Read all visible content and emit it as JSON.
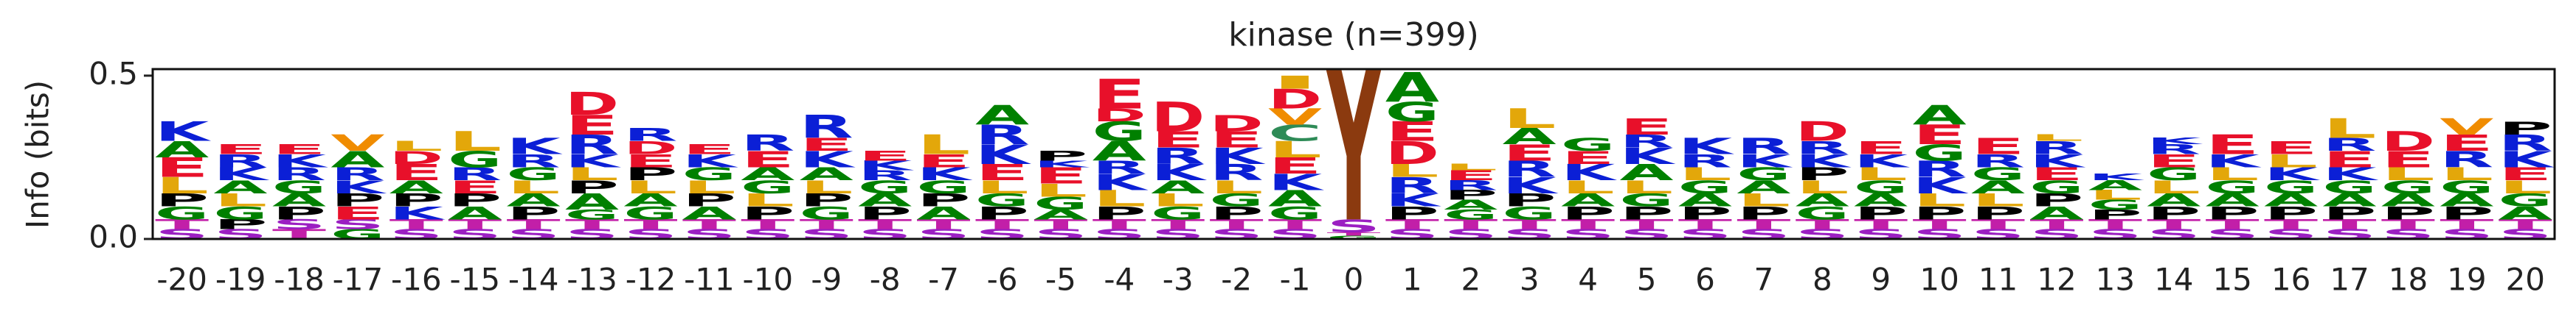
{
  "chart_data": {
    "type": "logo",
    "title": "kinase (n=399)",
    "ylabel": "Info (bits)",
    "categories": [
      "-20",
      "-19",
      "-18",
      "-17",
      "-16",
      "-15",
      "-14",
      "-13",
      "-12",
      "-11",
      "-10",
      "-9",
      "-8",
      "-7",
      "-6",
      "-5",
      "-4",
      "-3",
      "-2",
      "-1",
      "0",
      "1",
      "2",
      "3",
      "4",
      "5",
      "6",
      "7",
      "8",
      "9",
      "10",
      "11",
      "12",
      "13",
      "14",
      "15",
      "16",
      "17",
      "18",
      "19",
      "20"
    ],
    "ylim": [
      0,
      0.52
    ],
    "yticks": [
      {
        "value": 0,
        "label": "0.0"
      },
      {
        "value": 0.5,
        "label": "0.5"
      }
    ],
    "letter_colors": {
      "A": "#008000",
      "G": "#008000",
      "C": "#2e8b57",
      "D": "#e8102a",
      "E": "#e8102a",
      "K": "#0b1fd6",
      "R": "#0b1fd6",
      "P": "#000000",
      "L": "#e3a70a",
      "I": "#e3a70a",
      "V": "#f08c00",
      "Y": "#8b3a0f",
      "S": "#9b1fc2",
      "T": "#c21fa8"
    },
    "stacks": [
      {
        "letters": [
          "S",
          "T",
          "G",
          "P",
          "L",
          "E",
          "A",
          "K"
        ],
        "values": [
          0.03,
          0.03,
          0.04,
          0.04,
          0.05,
          0.06,
          0.05,
          0.06
        ]
      },
      {
        "letters": [
          "S",
          "P",
          "G",
          "L",
          "A",
          "K",
          "R",
          "E"
        ],
        "values": [
          0.03,
          0.03,
          0.04,
          0.04,
          0.04,
          0.04,
          0.04,
          0.03
        ]
      },
      {
        "letters": [
          "T",
          "S",
          "P",
          "A",
          "G",
          "R",
          "K",
          "E"
        ],
        "values": [
          0.03,
          0.03,
          0.04,
          0.04,
          0.04,
          0.04,
          0.04,
          0.03
        ]
      },
      {
        "letters": [
          "G",
          "S",
          "E",
          "P",
          "K",
          "R",
          "A",
          "V"
        ],
        "values": [
          0.03,
          0.03,
          0.04,
          0.04,
          0.04,
          0.04,
          0.05,
          0.05
        ]
      },
      {
        "letters": [
          "S",
          "T",
          "K",
          "P",
          "A",
          "E",
          "D",
          "L"
        ],
        "values": [
          0.03,
          0.03,
          0.04,
          0.04,
          0.04,
          0.05,
          0.04,
          0.03
        ]
      },
      {
        "letters": [
          "S",
          "T",
          "A",
          "P",
          "E",
          "R",
          "G",
          "L"
        ],
        "values": [
          0.03,
          0.03,
          0.04,
          0.04,
          0.04,
          0.04,
          0.05,
          0.06
        ]
      },
      {
        "letters": [
          "S",
          "T",
          "P",
          "A",
          "L",
          "G",
          "R",
          "K"
        ],
        "values": [
          0.03,
          0.03,
          0.04,
          0.04,
          0.04,
          0.04,
          0.04,
          0.05
        ]
      },
      {
        "letters": [
          "S",
          "T",
          "G",
          "A",
          "P",
          "L",
          "K",
          "R",
          "E",
          "D"
        ],
        "values": [
          0.03,
          0.03,
          0.03,
          0.05,
          0.04,
          0.04,
          0.04,
          0.06,
          0.06,
          0.07
        ]
      },
      {
        "letters": [
          "S",
          "T",
          "G",
          "A",
          "L",
          "P",
          "E",
          "D",
          "R"
        ],
        "values": [
          0.03,
          0.03,
          0.04,
          0.04,
          0.04,
          0.04,
          0.04,
          0.04,
          0.04
        ]
      },
      {
        "letters": [
          "S",
          "T",
          "A",
          "P",
          "L",
          "G",
          "K",
          "E"
        ],
        "values": [
          0.03,
          0.03,
          0.04,
          0.04,
          0.04,
          0.04,
          0.04,
          0.03
        ]
      },
      {
        "letters": [
          "S",
          "T",
          "P",
          "L",
          "G",
          "A",
          "E",
          "R"
        ],
        "values": [
          0.03,
          0.03,
          0.04,
          0.04,
          0.04,
          0.04,
          0.05,
          0.05
        ]
      },
      {
        "letters": [
          "S",
          "T",
          "G",
          "P",
          "L",
          "A",
          "K",
          "E",
          "R"
        ],
        "values": [
          0.03,
          0.03,
          0.04,
          0.04,
          0.04,
          0.04,
          0.05,
          0.04,
          0.07
        ]
      },
      {
        "letters": [
          "S",
          "T",
          "P",
          "A",
          "G",
          "R",
          "K",
          "E"
        ],
        "values": [
          0.03,
          0.03,
          0.04,
          0.04,
          0.04,
          0.03,
          0.03,
          0.03
        ]
      },
      {
        "letters": [
          "S",
          "T",
          "A",
          "P",
          "G",
          "K",
          "E",
          "L"
        ],
        "values": [
          0.03,
          0.03,
          0.04,
          0.04,
          0.04,
          0.04,
          0.04,
          0.06
        ]
      },
      {
        "letters": [
          "S",
          "T",
          "P",
          "G",
          "L",
          "E",
          "K",
          "R",
          "A"
        ],
        "values": [
          0.03,
          0.03,
          0.04,
          0.04,
          0.04,
          0.05,
          0.06,
          0.06,
          0.06
        ]
      },
      {
        "letters": [
          "S",
          "T",
          "A",
          "G",
          "L",
          "E",
          "K",
          "P"
        ],
        "values": [
          0.03,
          0.03,
          0.03,
          0.04,
          0.04,
          0.05,
          0.02,
          0.03
        ]
      },
      {
        "letters": [
          "S",
          "T",
          "P",
          "L",
          "K",
          "R",
          "A",
          "G",
          "D",
          "E"
        ],
        "values": [
          0.03,
          0.03,
          0.04,
          0.05,
          0.05,
          0.04,
          0.06,
          0.06,
          0.04,
          0.09
        ]
      },
      {
        "letters": [
          "S",
          "T",
          "G",
          "L",
          "A",
          "K",
          "R",
          "E",
          "D"
        ],
        "values": [
          0.03,
          0.03,
          0.04,
          0.04,
          0.04,
          0.05,
          0.05,
          0.05,
          0.09
        ]
      },
      {
        "letters": [
          "S",
          "T",
          "P",
          "G",
          "L",
          "R",
          "K",
          "E",
          "D"
        ],
        "values": [
          0.03,
          0.03,
          0.04,
          0.04,
          0.04,
          0.05,
          0.05,
          0.05,
          0.05
        ]
      },
      {
        "letters": [
          "S",
          "T",
          "G",
          "A",
          "K",
          "E",
          "L",
          "C",
          "V",
          "D",
          "I"
        ],
        "values": [
          0.03,
          0.03,
          0.04,
          0.05,
          0.05,
          0.05,
          0.05,
          0.05,
          0.05,
          0.06,
          0.04
        ]
      },
      {
        "letters": [
          "G",
          "T",
          "S",
          "Y"
        ],
        "values": [
          0.01,
          0.01,
          0.04,
          0.46
        ]
      },
      {
        "letters": [
          "S",
          "T",
          "P",
          "K",
          "R",
          "L",
          "D",
          "E",
          "G",
          "A"
        ],
        "values": [
          0.03,
          0.03,
          0.04,
          0.04,
          0.05,
          0.04,
          0.07,
          0.06,
          0.06,
          0.09
        ]
      },
      {
        "letters": [
          "S",
          "T",
          "G",
          "A",
          "P",
          "R",
          "E",
          "L"
        ],
        "values": [
          0.03,
          0.03,
          0.03,
          0.03,
          0.03,
          0.03,
          0.03,
          0.02
        ]
      },
      {
        "letters": [
          "S",
          "T",
          "G",
          "P",
          "K",
          "R",
          "E",
          "A",
          "L"
        ],
        "values": [
          0.03,
          0.03,
          0.04,
          0.04,
          0.05,
          0.05,
          0.05,
          0.05,
          0.06
        ]
      },
      {
        "letters": [
          "S",
          "T",
          "P",
          "A",
          "L",
          "K",
          "E",
          "G"
        ],
        "values": [
          0.03,
          0.03,
          0.04,
          0.04,
          0.04,
          0.05,
          0.04,
          0.04
        ]
      },
      {
        "letters": [
          "S",
          "T",
          "P",
          "G",
          "L",
          "A",
          "K",
          "R",
          "E"
        ],
        "values": [
          0.03,
          0.03,
          0.04,
          0.04,
          0.04,
          0.05,
          0.05,
          0.04,
          0.05
        ]
      },
      {
        "letters": [
          "S",
          "T",
          "P",
          "A",
          "G",
          "L",
          "R",
          "K"
        ],
        "values": [
          0.03,
          0.03,
          0.04,
          0.04,
          0.04,
          0.04,
          0.04,
          0.05
        ]
      },
      {
        "letters": [
          "S",
          "T",
          "P",
          "L",
          "A",
          "G",
          "K",
          "R"
        ],
        "values": [
          0.03,
          0.03,
          0.04,
          0.04,
          0.04,
          0.04,
          0.04,
          0.05
        ]
      },
      {
        "letters": [
          "S",
          "T",
          "G",
          "A",
          "L",
          "P",
          "K",
          "R",
          "D"
        ],
        "values": [
          0.03,
          0.03,
          0.04,
          0.04,
          0.04,
          0.04,
          0.04,
          0.04,
          0.06
        ]
      },
      {
        "letters": [
          "S",
          "T",
          "P",
          "A",
          "G",
          "L",
          "K",
          "E"
        ],
        "values": [
          0.03,
          0.03,
          0.04,
          0.04,
          0.04,
          0.04,
          0.04,
          0.04
        ]
      },
      {
        "letters": [
          "S",
          "T",
          "P",
          "L",
          "K",
          "R",
          "G",
          "E",
          "A"
        ],
        "values": [
          0.03,
          0.03,
          0.04,
          0.04,
          0.05,
          0.05,
          0.05,
          0.06,
          0.06
        ]
      },
      {
        "letters": [
          "S",
          "T",
          "P",
          "L",
          "A",
          "G",
          "R",
          "E"
        ],
        "values": [
          0.03,
          0.03,
          0.04,
          0.04,
          0.04,
          0.04,
          0.04,
          0.05
        ]
      },
      {
        "letters": [
          "S",
          "T",
          "A",
          "P",
          "G",
          "E",
          "K",
          "R",
          "L"
        ],
        "values": [
          0.03,
          0.03,
          0.04,
          0.04,
          0.04,
          0.04,
          0.04,
          0.04,
          0.02
        ]
      },
      {
        "letters": [
          "S",
          "T",
          "P",
          "G",
          "L",
          "A",
          "K"
        ],
        "values": [
          0.03,
          0.03,
          0.03,
          0.03,
          0.03,
          0.03,
          0.02
        ]
      },
      {
        "letters": [
          "S",
          "T",
          "P",
          "A",
          "L",
          "G",
          "E",
          "R",
          "K"
        ],
        "values": [
          0.03,
          0.03,
          0.04,
          0.04,
          0.04,
          0.04,
          0.04,
          0.03,
          0.02
        ]
      },
      {
        "letters": [
          "S",
          "T",
          "P",
          "A",
          "G",
          "L",
          "K",
          "E"
        ],
        "values": [
          0.03,
          0.03,
          0.04,
          0.04,
          0.04,
          0.04,
          0.04,
          0.06
        ]
      },
      {
        "letters": [
          "S",
          "T",
          "P",
          "A",
          "G",
          "K",
          "L",
          "E"
        ],
        "values": [
          0.03,
          0.03,
          0.04,
          0.04,
          0.04,
          0.04,
          0.04,
          0.04
        ]
      },
      {
        "letters": [
          "S",
          "T",
          "P",
          "A",
          "G",
          "K",
          "E",
          "R",
          "L"
        ],
        "values": [
          0.03,
          0.03,
          0.04,
          0.04,
          0.04,
          0.04,
          0.05,
          0.04,
          0.06
        ]
      },
      {
        "letters": [
          "S",
          "T",
          "P",
          "A",
          "G",
          "L",
          "E",
          "D"
        ],
        "values": [
          0.03,
          0.03,
          0.04,
          0.04,
          0.04,
          0.04,
          0.05,
          0.06
        ]
      },
      {
        "letters": [
          "S",
          "T",
          "P",
          "A",
          "G",
          "L",
          "R",
          "E",
          "V"
        ],
        "values": [
          0.03,
          0.03,
          0.04,
          0.04,
          0.04,
          0.04,
          0.05,
          0.05,
          0.05
        ]
      },
      {
        "letters": [
          "S",
          "T",
          "A",
          "G",
          "L",
          "E",
          "K",
          "R",
          "P"
        ],
        "values": [
          0.03,
          0.03,
          0.04,
          0.04,
          0.04,
          0.04,
          0.05,
          0.05,
          0.04
        ]
      }
    ]
  }
}
